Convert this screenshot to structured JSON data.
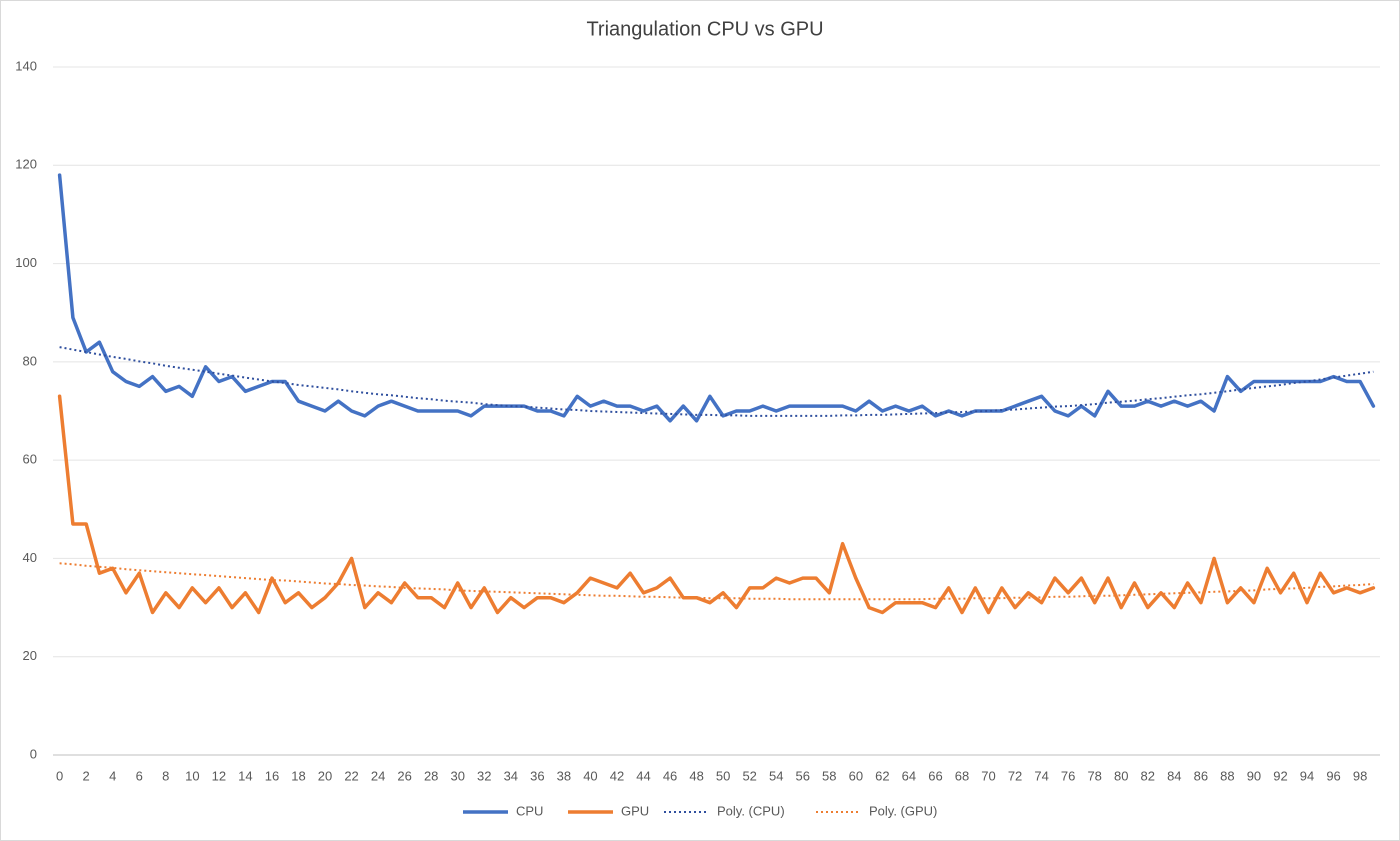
{
  "chart_data": {
    "type": "line",
    "title": "Triangulation CPU vs GPU",
    "categories": [
      0,
      null,
      2,
      null,
      4,
      null,
      6,
      null,
      8,
      null,
      10,
      null,
      12,
      null,
      14,
      null,
      16,
      null,
      18,
      null,
      20,
      null,
      22,
      null,
      24,
      null,
      26,
      null,
      28,
      null,
      30,
      null,
      32,
      null,
      34,
      null,
      36,
      null,
      38,
      null,
      40,
      null,
      42,
      null,
      44,
      null,
      46,
      null,
      48,
      null,
      50,
      null,
      52,
      null,
      54,
      null,
      56,
      null,
      58,
      null,
      60,
      null,
      62,
      null,
      64,
      null,
      66,
      null,
      68,
      null,
      70,
      null,
      72,
      null,
      74,
      null,
      76,
      null,
      78,
      null,
      80,
      null,
      82,
      null,
      84,
      null,
      86,
      null,
      88,
      null,
      90,
      null,
      92,
      null,
      94,
      null,
      96,
      null,
      98,
      null
    ],
    "series": [
      {
        "name": "CPU",
        "color": "#4472c4",
        "line_style": "solid",
        "values": [
          118,
          89,
          82,
          84,
          78,
          76,
          75,
          77,
          74,
          75,
          73,
          79,
          76,
          77,
          74,
          75,
          76,
          76,
          72,
          71,
          70,
          72,
          70,
          69,
          71,
          72,
          71,
          70,
          70,
          70,
          70,
          69,
          71,
          71,
          71,
          71,
          70,
          70,
          69,
          73,
          71,
          72,
          71,
          71,
          70,
          71,
          68,
          71,
          68,
          73,
          69,
          70,
          70,
          71,
          70,
          71,
          71,
          71,
          71,
          71,
          70,
          72,
          70,
          71,
          70,
          71,
          69,
          70,
          69,
          70,
          70,
          70,
          71,
          72,
          73,
          70,
          69,
          71,
          69,
          74,
          71,
          71,
          72,
          71,
          72,
          71,
          72,
          70,
          77,
          74,
          76,
          76,
          76,
          76,
          76,
          76,
          77,
          76,
          76,
          71
        ]
      },
      {
        "name": "GPU",
        "color": "#ed7d31",
        "line_style": "solid",
        "values": [
          73,
          47,
          47,
          37,
          38,
          33,
          37,
          29,
          33,
          30,
          34,
          31,
          34,
          30,
          33,
          29,
          36,
          31,
          33,
          30,
          32,
          35,
          40,
          30,
          33,
          31,
          35,
          32,
          32,
          30,
          35,
          30,
          34,
          29,
          32,
          30,
          32,
          32,
          31,
          33,
          36,
          35,
          34,
          37,
          33,
          34,
          36,
          32,
          32,
          31,
          33,
          30,
          34,
          34,
          36,
          35,
          36,
          36,
          33,
          43,
          36,
          30,
          29,
          31,
          31,
          31,
          30,
          34,
          29,
          34,
          29,
          34,
          30,
          33,
          31,
          36,
          33,
          36,
          31,
          36,
          30,
          35,
          30,
          33,
          30,
          35,
          31,
          40,
          31,
          34,
          31,
          38,
          33,
          37,
          31,
          37,
          33,
          34,
          33,
          34
        ]
      },
      {
        "name": "Poly. (CPU)",
        "color": "#2f4f9e",
        "line_style": "dotted",
        "values": [
          83.0,
          82.5,
          82.0,
          81.5,
          81.0,
          80.6,
          80.1,
          79.7,
          79.2,
          78.8,
          78.4,
          78.0,
          77.6,
          77.2,
          76.8,
          76.4,
          76.0,
          75.7,
          75.3,
          75.0,
          74.7,
          74.4,
          74.0,
          73.7,
          73.4,
          73.2,
          72.9,
          72.6,
          72.4,
          72.1,
          71.9,
          71.7,
          71.4,
          71.2,
          71.0,
          70.9,
          70.7,
          70.5,
          70.3,
          70.2,
          70.0,
          69.9,
          69.8,
          69.7,
          69.6,
          69.5,
          69.4,
          69.3,
          69.2,
          69.2,
          69.1,
          69.1,
          69.0,
          69.0,
          69.0,
          69.0,
          69.0,
          69.0,
          69.0,
          69.1,
          69.1,
          69.2,
          69.2,
          69.3,
          69.4,
          69.5,
          69.6,
          69.7,
          69.8,
          69.9,
          70.0,
          70.2,
          70.3,
          70.5,
          70.7,
          70.9,
          71.0,
          71.2,
          71.4,
          71.7,
          71.9,
          72.1,
          72.4,
          72.6,
          72.9,
          73.2,
          73.4,
          73.7,
          74.0,
          74.4,
          74.7,
          75.0,
          75.3,
          75.7,
          76.0,
          76.4,
          76.8,
          77.2,
          77.6,
          78.0
        ]
      },
      {
        "name": "Poly. (GPU)",
        "color": "#ed7d31",
        "line_style": "dotted",
        "values": [
          39.0,
          38.8,
          38.5,
          38.3,
          38.1,
          37.8,
          37.6,
          37.4,
          37.2,
          37.0,
          36.8,
          36.6,
          36.4,
          36.2,
          36.0,
          35.8,
          35.6,
          35.5,
          35.3,
          35.1,
          34.9,
          34.8,
          34.6,
          34.5,
          34.3,
          34.2,
          34.0,
          33.9,
          33.8,
          33.7,
          33.5,
          33.4,
          33.3,
          33.2,
          33.1,
          33.0,
          32.9,
          32.8,
          32.7,
          32.6,
          32.5,
          32.4,
          32.4,
          32.3,
          32.2,
          32.2,
          32.1,
          32.0,
          32.0,
          31.9,
          31.9,
          31.9,
          31.8,
          31.8,
          31.8,
          31.7,
          31.7,
          31.7,
          31.7,
          31.7,
          31.7,
          31.7,
          31.7,
          31.7,
          31.7,
          31.7,
          31.8,
          31.8,
          31.8,
          31.9,
          31.9,
          31.9,
          32.0,
          32.0,
          32.1,
          32.2,
          32.2,
          32.3,
          32.4,
          32.4,
          32.5,
          32.6,
          32.7,
          32.8,
          32.9,
          33.0,
          33.1,
          33.2,
          33.3,
          33.4,
          33.5,
          33.7,
          33.8,
          33.9,
          34.0,
          34.2,
          34.3,
          34.5,
          34.6,
          34.8
        ]
      }
    ],
    "ylim": [
      0,
      140
    ],
    "yticks": [
      0,
      20,
      40,
      60,
      80,
      100,
      120,
      140
    ],
    "grid": true,
    "legend": "bottom"
  }
}
